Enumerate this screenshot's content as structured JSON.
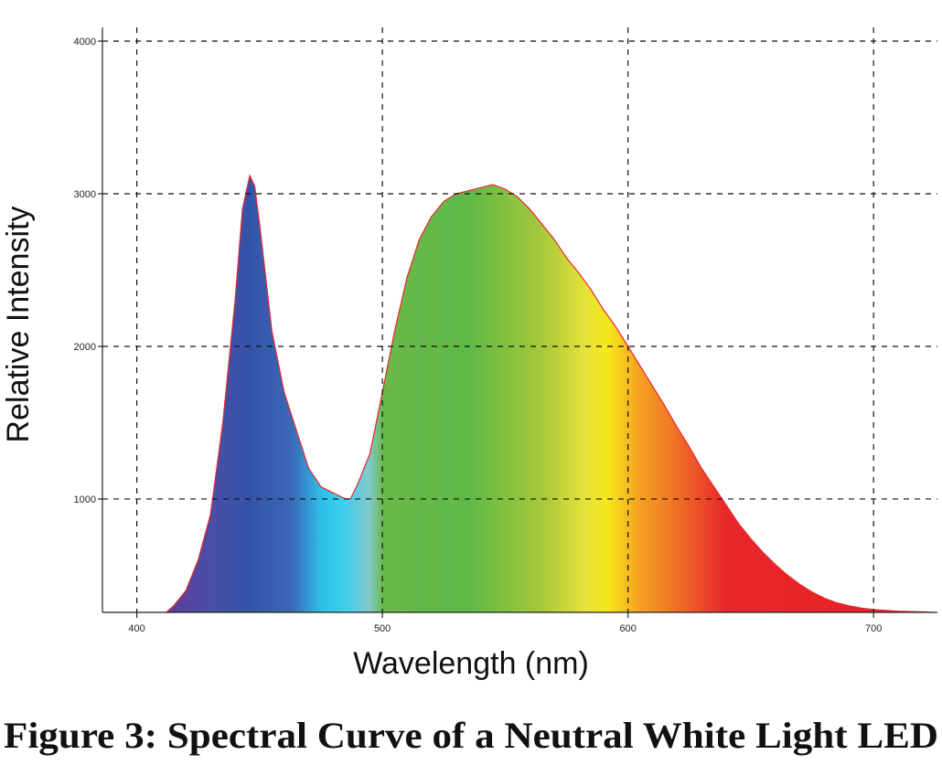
{
  "chart_data": {
    "type": "area",
    "title": "Figure 3: Spectral Curve of a Neutral White Light LED",
    "x_label": "Wavelength (nm)",
    "y_label": "Relative Intensity",
    "x": [
      412,
      415,
      420,
      425,
      430,
      435,
      440,
      443,
      446,
      448,
      450,
      455,
      460,
      465,
      470,
      475,
      480,
      485,
      487,
      490,
      495,
      500,
      505,
      510,
      515,
      520,
      525,
      530,
      535,
      540,
      545,
      550,
      555,
      560,
      565,
      570,
      575,
      580,
      585,
      590,
      595,
      600,
      605,
      610,
      615,
      620,
      625,
      630,
      635,
      640,
      645,
      650,
      655,
      660,
      665,
      670,
      675,
      680,
      685,
      690,
      695,
      700,
      710,
      720,
      724
    ],
    "series": [
      {
        "color": "#e8262b",
        "values": [
          257,
          300,
          400,
          600,
          900,
          1500,
          2300,
          2900,
          3120,
          3050,
          2800,
          2100,
          1700,
          1450,
          1200,
          1080,
          1040,
          1000,
          1000,
          1100,
          1300,
          1700,
          2100,
          2450,
          2700,
          2850,
          2950,
          3000,
          3020,
          3040,
          3060,
          3030,
          2980,
          2900,
          2800,
          2700,
          2580,
          2480,
          2370,
          2240,
          2130,
          2000,
          1870,
          1740,
          1610,
          1470,
          1340,
          1200,
          1080,
          960,
          840,
          740,
          650,
          570,
          500,
          440,
          390,
          350,
          320,
          300,
          285,
          275,
          265,
          260,
          257
        ]
      }
    ],
    "xlim": [
      386,
      726
    ],
    "ylim": [
      257,
      4090
    ],
    "xticks": [
      400,
      500,
      600,
      700
    ],
    "yticks": [
      1000,
      2000,
      3000,
      4000
    ],
    "grid": true
  }
}
